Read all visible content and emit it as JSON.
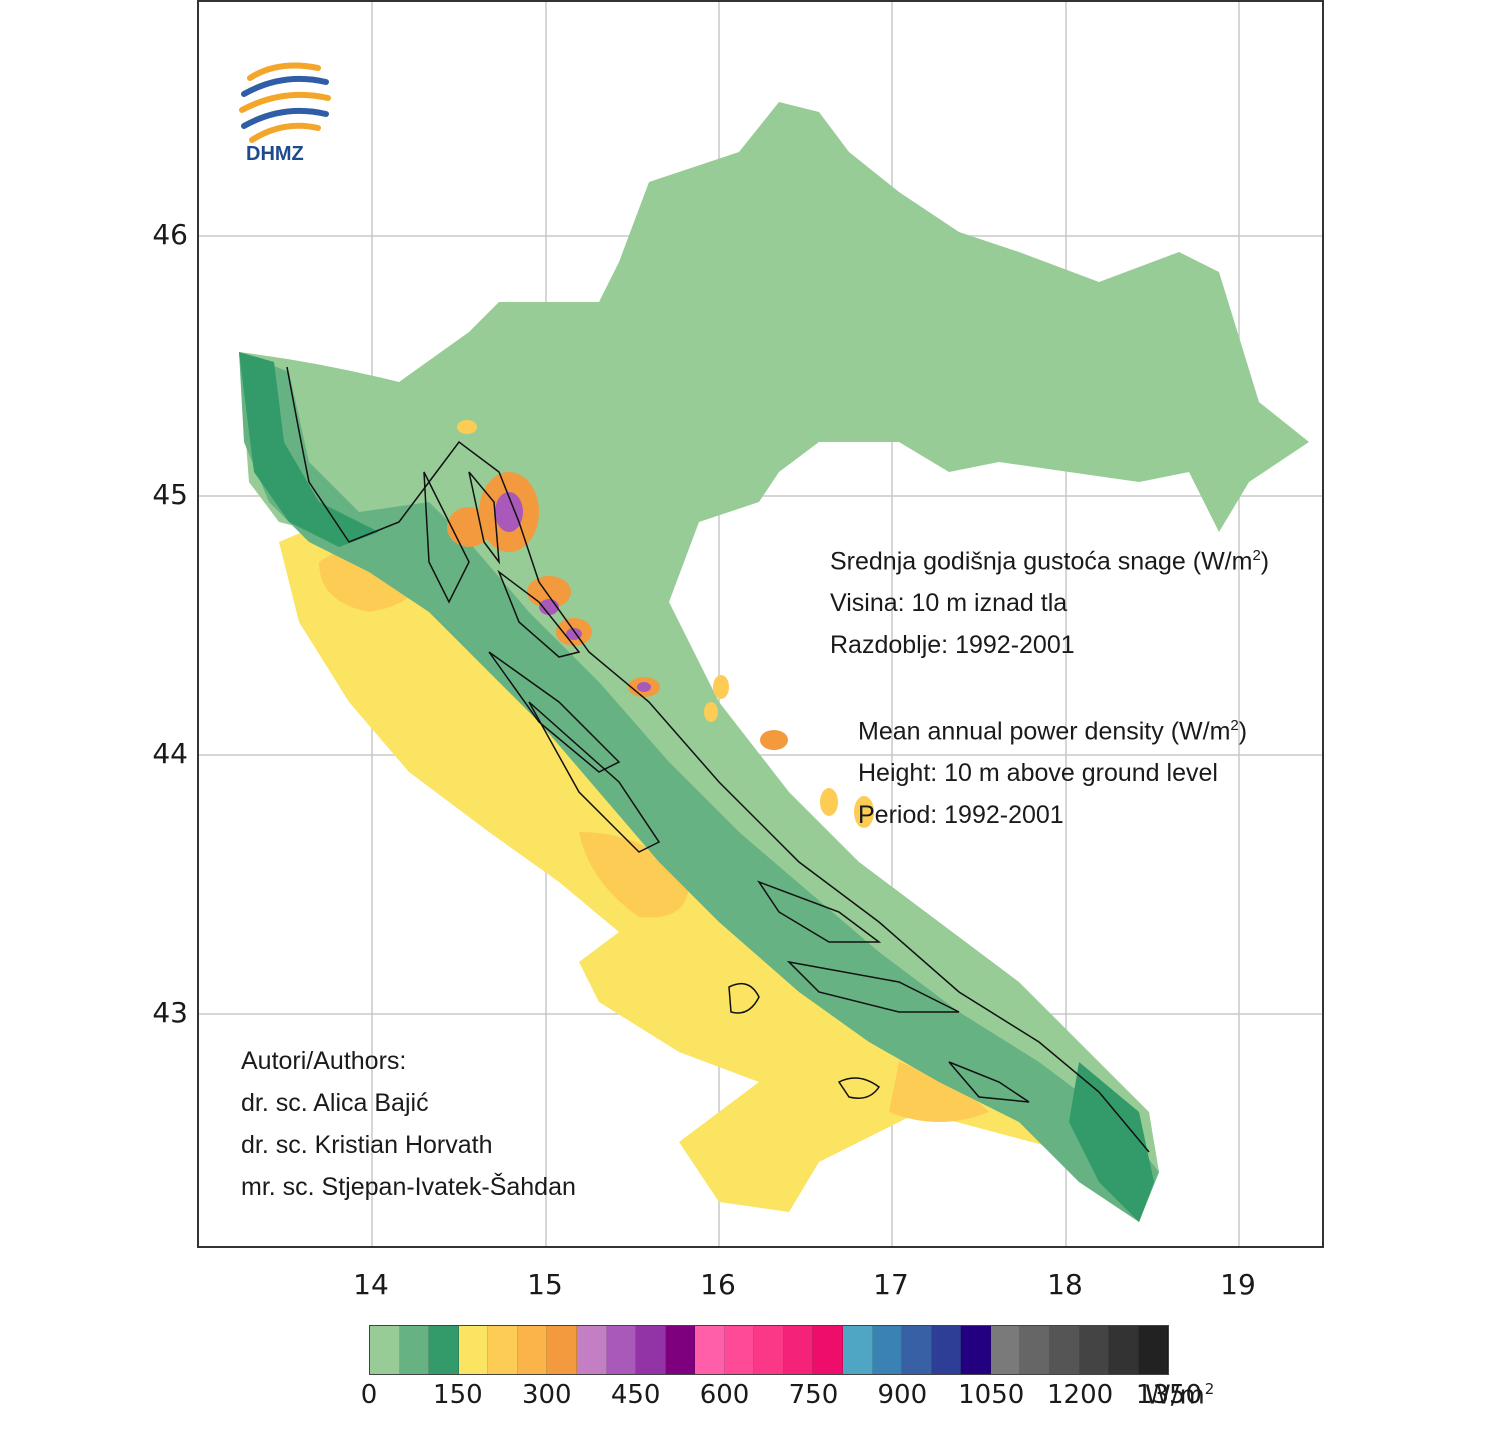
{
  "logo": {
    "text": "DHMZ"
  },
  "axes": {
    "y_ticks": [
      "46",
      "45",
      "44",
      "43"
    ],
    "x_ticks": [
      "14",
      "15",
      "16",
      "17",
      "18",
      "19"
    ]
  },
  "title_hr": {
    "line1": "Srednja godišnja gustoća snage (W/m",
    "line1_sup": "2",
    "line1_end": ")",
    "line2": "Visina: 10 m iznad tla",
    "line3": "Razdoblje: 1992-2001"
  },
  "title_en": {
    "line1": "Mean annual power density (W/m",
    "line1_sup": "2",
    "line1_end": ")",
    "line2": "Height: 10 m above ground level",
    "line3": "Period: 1992-2001"
  },
  "authors": {
    "heading": "Autori/Authors:",
    "a1": "dr. sc. Alica Bajić",
    "a2": "dr. sc. Kristian Horvath",
    "a3": "mr. sc. Stjepan-Ivatek-Šahdan"
  },
  "legend": {
    "labels": [
      "0",
      "150",
      "300",
      "450",
      "600",
      "750",
      "900",
      "1050",
      "1200",
      "1350"
    ],
    "unit": "W/m",
    "unit_sup": "2",
    "colors": [
      "#97cc97",
      "#66b283",
      "#339a6a",
      "#fbe462",
      "#fccc55",
      "#fbb44a",
      "#f39a3e",
      "#c47ec4",
      "#a959b9",
      "#9233a6",
      "#7f007f",
      "#ff5fa8",
      "#ff4a98",
      "#fb3788",
      "#f5227a",
      "#ee0d6a",
      "#4fa5c4",
      "#3b82b4",
      "#3760a5",
      "#2e3d95",
      "#22007f",
      "#7a7a7a",
      "#666666",
      "#555555",
      "#444444",
      "#333333",
      "#222222"
    ]
  },
  "map_colors": {
    "land_low": "#97cc97",
    "land_mid": "#66b283",
    "land_dark": "#339a6a",
    "sea_yellow": "#fbe462",
    "sea_orange": "#fccc55",
    "hot_orange": "#f39a3e",
    "hot_purple": "#a959b9"
  }
}
